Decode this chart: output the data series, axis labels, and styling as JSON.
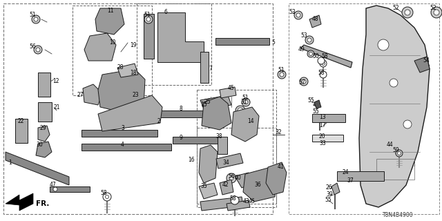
{
  "bg_color": "#ffffff",
  "line_color": "#1a1a1a",
  "text_color": "#000000",
  "diagram_code": "T8N4B4900",
  "figsize": [
    6.4,
    3.2
  ],
  "dpi": 100
}
